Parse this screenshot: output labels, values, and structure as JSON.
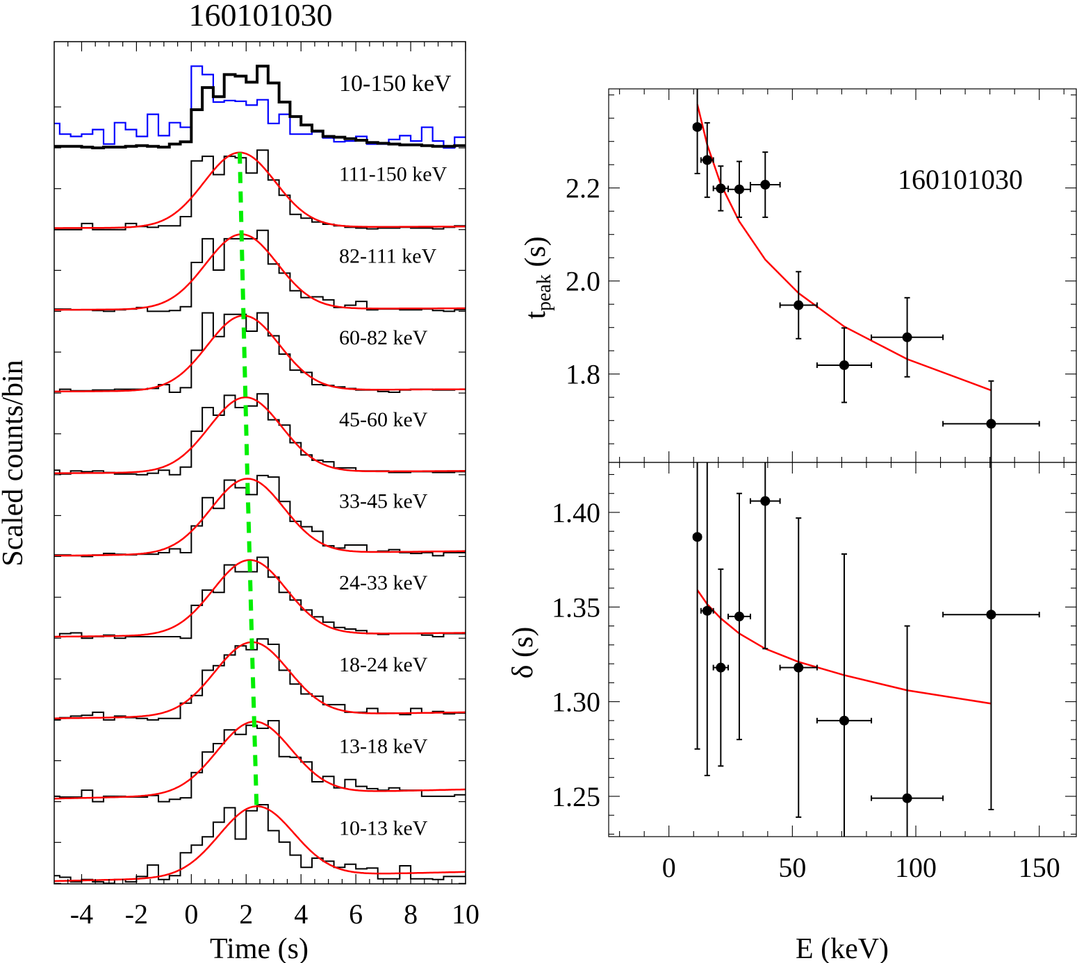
{
  "chart_data": [
    {
      "type": "line",
      "subtype": "histogram",
      "title": "160101030",
      "xlabel": "Time (s)",
      "ylabel": "Scaled counts/bin",
      "xlim": [
        -5,
        10
      ],
      "xticks": [
        -4,
        -2,
        0,
        2,
        4,
        6,
        8,
        10
      ],
      "xtick_labels": [
        "-4",
        "-2",
        "0",
        "2",
        "4",
        "6",
        "8",
        "10"
      ],
      "bin_width": 0.4,
      "first_bin_edge": -5.2,
      "colors": {
        "data": "#000000",
        "fit": "#ff0000",
        "peak_trend": "#00ee00",
        "comparison": "#0000ff"
      },
      "panels": [
        {
          "label": "10-150 keV",
          "series": [
            {
              "color": "#000000",
              "values": [
                0.02,
                0.02,
                0.02,
                0.01,
                0.0,
                0.01,
                0.01,
                0.02,
                0.03,
                0.02,
                0.01,
                0.05,
                0.08,
                0.5,
                0.79,
                0.67,
                0.96,
                0.94,
                0.86,
                1.07,
                0.85,
                0.6,
                0.41,
                0.3,
                0.22,
                0.15,
                0.14,
                0.12,
                0.1,
                0.07,
                0.06,
                0.05,
                0.04,
                0.04,
                0.03,
                0.02,
                0.02,
                0.03
              ]
            },
            {
              "color": "#0000ff",
              "values": [
                0.32,
                0.18,
                0.15,
                0.18,
                0.24,
                0.05,
                0.33,
                0.24,
                0.15,
                0.44,
                0.16,
                0.33,
                0.27,
                1.07,
                0.96,
                0.6,
                0.62,
                0.61,
                0.56,
                0.63,
                0.32,
                0.44,
                0.18,
                0.18,
                0.21,
                0.13,
                0.08,
                0.09,
                0.15,
                0.05,
                0.05,
                0.11,
                0.16,
                0.09,
                0.27,
                0.09,
                0.0,
                0.14
              ]
            }
          ]
        },
        {
          "label": "111-150 keV",
          "values": [
            0.0,
            0.0,
            0.0,
            0.08,
            0.0,
            0.0,
            0.0,
            0.08,
            0.04,
            0.03,
            0.05,
            0.05,
            0.17,
            0.9,
            0.96,
            0.72,
            0.96,
            0.94,
            0.74,
            1.04,
            0.65,
            0.45,
            0.2,
            0.15,
            0.1,
            0.07,
            0.05,
            0.03,
            0.02,
            0.01,
            0.02,
            0.02,
            0.03,
            0.02,
            0.02,
            0.01,
            0.03,
            0.05
          ],
          "fit": {
            "tpeak": 1.765,
            "delta": 1.299,
            "amplitude": 0.98,
            "background": [
              0.02,
              0.04
            ]
          }
        },
        {
          "label": "82-111 keV",
          "values": [
            0.03,
            0.03,
            0.02,
            0.02,
            0.01,
            0.0,
            0.02,
            0.03,
            0.05,
            0.0,
            0.0,
            0.01,
            0.06,
            0.64,
            0.95,
            0.54,
            0.95,
            0.95,
            0.95,
            1.06,
            0.62,
            0.5,
            0.27,
            0.18,
            0.19,
            0.15,
            0.05,
            0.08,
            0.13,
            0.02,
            0.03,
            0.03,
            0.02,
            0.02,
            0.03,
            0.01,
            0.0,
            0.02
          ],
          "fit": {
            "tpeak": 1.832,
            "delta": 1.306,
            "amplitude": 0.98,
            "background": [
              0.02,
              0.04
            ]
          }
        },
        {
          "label": "60-82 keV",
          "values": [
            0.02,
            0.05,
            0.03,
            0.03,
            0.04,
            0.04,
            0.05,
            0.05,
            0.05,
            0.06,
            0.11,
            0.01,
            0.07,
            0.56,
            1.05,
            0.74,
            1.03,
            1.03,
            0.81,
            1.05,
            0.75,
            0.51,
            0.3,
            0.27,
            0.11,
            0.1,
            0.08,
            0.06,
            0.04,
            0.04,
            0.02,
            0.01,
            0.04,
            0.05,
            0.05,
            0.04,
            0.04,
            0.05
          ],
          "fit": {
            "tpeak": 1.902,
            "delta": 1.314,
            "amplitude": 0.98,
            "background": [
              0.02,
              0.05
            ]
          }
        },
        {
          "label": "45-60 keV",
          "values": [
            0.06,
            0.01,
            0.05,
            0.04,
            0.05,
            0.03,
            0.01,
            0.01,
            0.0,
            0.02,
            0.06,
            0.0,
            0.1,
            0.57,
            0.88,
            0.78,
            1.04,
            0.88,
            0.9,
            1.06,
            0.72,
            0.65,
            0.42,
            0.26,
            0.19,
            0.17,
            0.09,
            0.09,
            0.05,
            0.05,
            0.05,
            0.03,
            0.03,
            0.04,
            0.04,
            0.03,
            0.03,
            0.04
          ],
          "fit": {
            "tpeak": 1.974,
            "delta": 1.321,
            "amplitude": 0.98,
            "background": [
              0.02,
              0.05
            ]
          }
        },
        {
          "label": "33-45 keV",
          "values": [
            0.02,
            0.02,
            0.01,
            0.0,
            0.02,
            0.04,
            0.03,
            0.02,
            0.03,
            0.03,
            0.05,
            0.1,
            0.05,
            0.4,
            0.77,
            0.63,
            1.0,
            0.9,
            0.81,
            1.06,
            1.04,
            0.72,
            0.46,
            0.39,
            0.33,
            0.14,
            0.11,
            0.15,
            0.15,
            0.06,
            0.07,
            0.09,
            0.05,
            0.04,
            0.05,
            0.01,
            0.05,
            0.05
          ],
          "fit": {
            "tpeak": 2.046,
            "delta": 1.328,
            "amplitude": 0.98,
            "background": [
              0.01,
              0.07
            ]
          }
        },
        {
          "label": "24-33 keV",
          "values": [
            0.02,
            0.06,
            0.07,
            0.0,
            0.02,
            0.04,
            0.0,
            0.02,
            0.02,
            0.02,
            0.02,
            0.02,
            0.0,
            0.43,
            0.63,
            0.6,
            0.96,
            0.87,
            0.87,
            1.06,
            0.8,
            0.6,
            0.5,
            0.37,
            0.28,
            0.21,
            0.14,
            0.12,
            0.1,
            0.06,
            0.05,
            0.06,
            0.06,
            0.06,
            0.04,
            0.02,
            0.06,
            0.06
          ],
          "fit": {
            "tpeak": 2.128,
            "delta": 1.336,
            "amplitude": 0.98,
            "background": [
              0.02,
              0.07
            ]
          }
        },
        {
          "label": "18-24 keV",
          "values": [
            0.0,
            0.03,
            0.05,
            0.06,
            0.1,
            0.0,
            0.05,
            0.03,
            0.02,
            0.0,
            0.02,
            0.02,
            0.22,
            0.32,
            0.65,
            0.71,
            0.85,
            0.97,
            0.92,
            1.06,
            0.99,
            0.65,
            0.47,
            0.34,
            0.31,
            0.2,
            0.2,
            0.1,
            0.1,
            0.15,
            0.09,
            0.09,
            0.07,
            0.15,
            0.09,
            0.11,
            0.08,
            0.09
          ],
          "fit": {
            "tpeak": 2.208,
            "delta": 1.344,
            "amplitude": 0.96,
            "background": [
              0.02,
              0.1
            ]
          }
        },
        {
          "label": "13-18 keV",
          "values": [
            0.07,
            0.06,
            0.06,
            0.15,
            0.0,
            0.07,
            0.07,
            0.06,
            0.06,
            0.08,
            0.0,
            0.03,
            0.05,
            0.38,
            0.65,
            0.76,
            0.94,
            0.88,
            1.0,
            0.96,
            1.06,
            0.59,
            0.58,
            0.52,
            0.26,
            0.33,
            0.18,
            0.29,
            0.2,
            0.17,
            0.15,
            0.18,
            0.15,
            0.15,
            0.07,
            0.07,
            0.07,
            0.09
          ],
          "fit": {
            "tpeak": 2.293,
            "delta": 1.3515,
            "amplitude": 0.95,
            "background": [
              0.04,
              0.16
            ]
          }
        },
        {
          "label": "10-13 keV",
          "values": [
            0.1,
            0.08,
            0.02,
            0.05,
            0.02,
            0.0,
            0.05,
            0.02,
            0.09,
            0.24,
            0.05,
            0.1,
            0.4,
            0.5,
            0.61,
            0.8,
            0.99,
            0.58,
            0.95,
            1.03,
            0.69,
            0.54,
            0.37,
            0.21,
            0.33,
            0.29,
            0.21,
            0.25,
            0.19,
            0.2,
            0.06,
            0.06,
            0.23,
            0.06,
            0.06,
            0.05,
            0.09,
            0.09
          ],
          "fit": {
            "tpeak": 2.38,
            "delta": 1.359,
            "amplitude": 0.92,
            "background": [
              0.03,
              0.15
            ]
          }
        }
      ]
    },
    {
      "type": "scatter",
      "annotation": "160101030",
      "xlabel": "E (keV)",
      "xlim": [
        -24.4,
        165
      ],
      "xticks": [
        0,
        50,
        100,
        150
      ],
      "xtick_labels": [
        "0",
        "50",
        "100",
        "150"
      ],
      "colors": {
        "points": "#000000",
        "fit": "#ff0000"
      },
      "panels": [
        {
          "ylabel_main": "t",
          "ylabel_sub": "peak",
          "ylabel_unit": " (s)",
          "ylim": [
            1.61,
            2.413
          ],
          "yticks": [
            1.8,
            2.0,
            2.2
          ],
          "ytick_labels": [
            "1.8",
            "2.0",
            "2.2"
          ],
          "yminor": 0.05,
          "points": [
            {
              "x": 11.5,
              "xerr": 1.5,
              "y": 2.331,
              "yerr": 0.1
            },
            {
              "x": 15.5,
              "xerr": 2.5,
              "y": 2.26,
              "yerr": 0.08
            },
            {
              "x": 21,
              "xerr": 3,
              "y": 2.199,
              "yerr": 0.048
            },
            {
              "x": 28.5,
              "xerr": 4.5,
              "y": 2.197,
              "yerr": 0.06
            },
            {
              "x": 39,
              "xerr": 6,
              "y": 2.207,
              "yerr": 0.07
            },
            {
              "x": 52.5,
              "xerr": 7.5,
              "y": 1.948,
              "yerr": 0.072
            },
            {
              "x": 71,
              "xerr": 11,
              "y": 1.819,
              "yerr": 0.08
            },
            {
              "x": 96.5,
              "xerr": 14.5,
              "y": 1.879,
              "yerr": 0.085
            },
            {
              "x": 130.5,
              "xerr": 19.5,
              "y": 1.693,
              "yerr": 0.092
            }
          ],
          "fit": {
            "x": [
              11.5,
              15.5,
              21,
              28.5,
              39,
              52.5,
              71,
              96.5,
              130.5
            ],
            "y": [
              2.38,
              2.293,
              2.208,
              2.128,
              2.046,
              1.974,
              1.902,
              1.832,
              1.765
            ]
          }
        },
        {
          "ylabel_main": "δ",
          "ylabel_sub": "",
          "ylabel_unit": " (s)",
          "ylim": [
            1.2287,
            1.4264
          ],
          "yticks": [
            1.25,
            1.3,
            1.35,
            1.4
          ],
          "ytick_labels": [
            "1.25",
            "1.30",
            "1.35",
            "1.40"
          ],
          "yminor": 0.01,
          "points": [
            {
              "x": 11.5,
              "xerr": 1.5,
              "y": 1.387,
              "yerr": 0.112
            },
            {
              "x": 15.5,
              "xerr": 2.5,
              "y": 1.348,
              "yerr": 0.087
            },
            {
              "x": 21,
              "xerr": 3,
              "y": 1.318,
              "yerr": 0.052
            },
            {
              "x": 28.5,
              "xerr": 4.5,
              "y": 1.345,
              "yerr": 0.065
            },
            {
              "x": 39,
              "xerr": 6,
              "y": 1.406,
              "yerr": 0.078
            },
            {
              "x": 52.5,
              "xerr": 7.5,
              "y": 1.318,
              "yerr": 0.079
            },
            {
              "x": 71,
              "xerr": 11,
              "y": 1.29,
              "yerr": 0.088
            },
            {
              "x": 96.5,
              "xerr": 14.5,
              "y": 1.249,
              "yerr": 0.091
            },
            {
              "x": 130.5,
              "xerr": 19.5,
              "y": 1.346,
              "yerr": 0.103
            }
          ],
          "fit": {
            "x": [
              11.5,
              15.5,
              21,
              28.5,
              39,
              52.5,
              71,
              96.5,
              130.5
            ],
            "y": [
              1.359,
              1.3515,
              1.344,
              1.336,
              1.328,
              1.321,
              1.314,
              1.306,
              1.299
            ]
          }
        }
      ]
    }
  ]
}
